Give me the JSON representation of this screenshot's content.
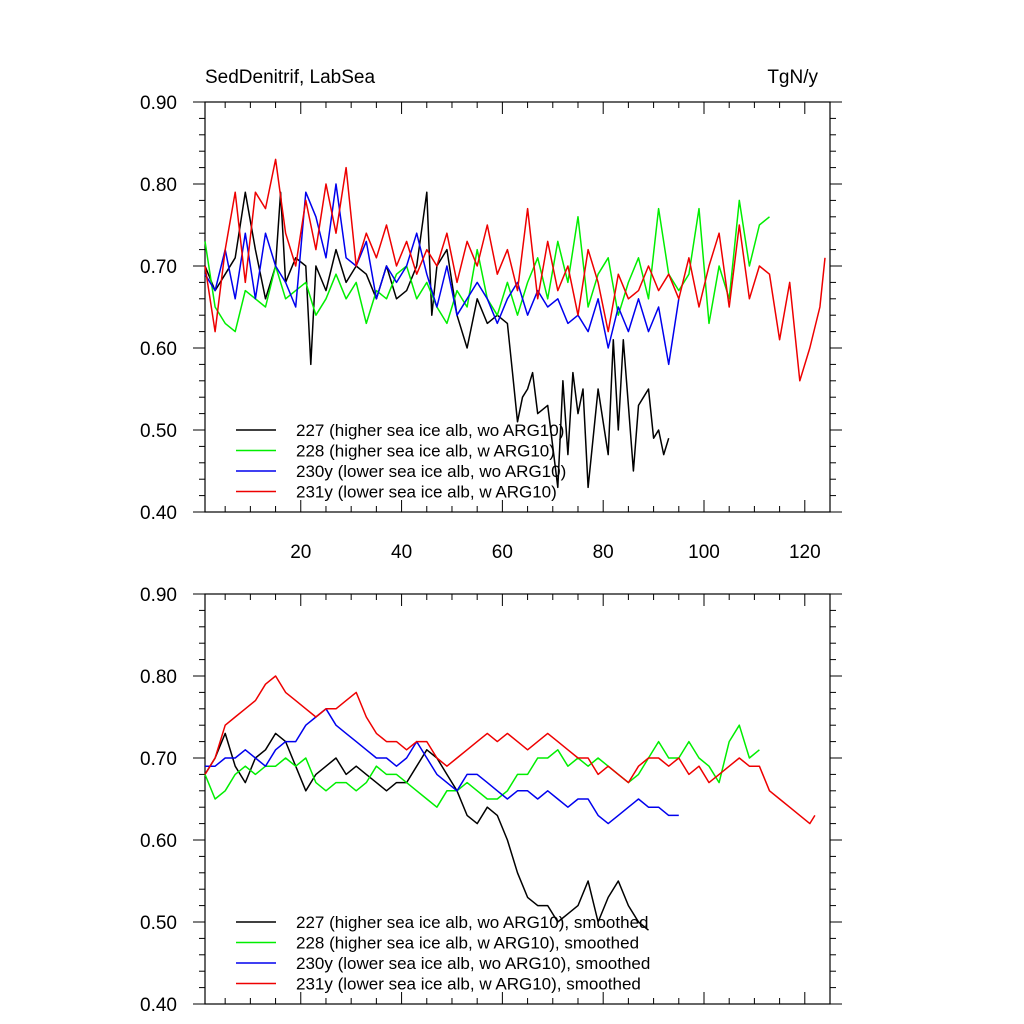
{
  "chart_data": [
    {
      "type": "line",
      "title": "SedDenitrif, LabSea",
      "units": "TgN/y",
      "xlim": [
        1,
        125
      ],
      "ylim": [
        0.4,
        0.9
      ],
      "xticks": [
        20,
        40,
        60,
        80,
        100,
        120
      ],
      "xtick_labels": [
        "20",
        "40",
        "60",
        "80",
        "100",
        "120"
      ],
      "yticks": [
        0.4,
        0.5,
        0.6,
        0.7,
        0.8,
        0.9
      ],
      "ytick_labels": [
        "0.40",
        "0.50",
        "0.60",
        "0.70",
        "0.80",
        "0.90"
      ],
      "legend_position": "bottom-left",
      "series": [
        {
          "name": "227 (higher sea ice alb, wo ARG10)",
          "color": "#000000",
          "x": [
            1,
            3,
            5,
            7,
            9,
            11,
            13,
            15,
            16,
            17,
            19,
            21,
            22,
            23,
            25,
            27,
            29,
            31,
            33,
            35,
            37,
            39,
            41,
            43,
            45,
            46,
            47,
            49,
            51,
            53,
            55,
            57,
            59,
            61,
            62,
            63,
            64,
            65,
            66,
            67,
            69,
            71,
            72,
            73,
            74,
            75,
            76,
            77,
            79,
            81,
            82,
            83,
            84,
            85,
            86,
            87,
            88,
            89,
            90,
            91,
            92,
            93
          ],
          "y": [
            0.7,
            0.67,
            0.69,
            0.71,
            0.79,
            0.72,
            0.66,
            0.7,
            0.79,
            0.68,
            0.71,
            0.7,
            0.58,
            0.7,
            0.67,
            0.72,
            0.68,
            0.7,
            0.69,
            0.66,
            0.7,
            0.66,
            0.67,
            0.7,
            0.79,
            0.64,
            0.7,
            0.72,
            0.64,
            0.6,
            0.66,
            0.63,
            0.64,
            0.63,
            0.57,
            0.51,
            0.54,
            0.55,
            0.57,
            0.52,
            0.53,
            0.43,
            0.56,
            0.47,
            0.57,
            0.52,
            0.55,
            0.43,
            0.55,
            0.47,
            0.61,
            0.5,
            0.61,
            0.53,
            0.45,
            0.53,
            0.54,
            0.55,
            0.49,
            0.5,
            0.47,
            0.49
          ]
        },
        {
          "name": "228 (higher sea ice alb, w ARG10)",
          "color": "#00ee00",
          "x": [
            1,
            3,
            5,
            7,
            9,
            11,
            13,
            15,
            17,
            19,
            21,
            23,
            25,
            27,
            29,
            31,
            33,
            35,
            37,
            39,
            41,
            43,
            45,
            47,
            49,
            51,
            53,
            55,
            57,
            59,
            61,
            63,
            65,
            67,
            69,
            71,
            73,
            75,
            77,
            79,
            81,
            83,
            85,
            87,
            89,
            91,
            93,
            95,
            97,
            99,
            101,
            103,
            105,
            107,
            109,
            111,
            113
          ],
          "y": [
            0.73,
            0.65,
            0.63,
            0.62,
            0.67,
            0.66,
            0.65,
            0.7,
            0.66,
            0.67,
            0.68,
            0.64,
            0.66,
            0.69,
            0.66,
            0.68,
            0.63,
            0.67,
            0.66,
            0.69,
            0.7,
            0.66,
            0.68,
            0.65,
            0.63,
            0.67,
            0.65,
            0.72,
            0.66,
            0.64,
            0.68,
            0.64,
            0.68,
            0.71,
            0.66,
            0.73,
            0.68,
            0.76,
            0.65,
            0.69,
            0.71,
            0.64,
            0.68,
            0.71,
            0.66,
            0.77,
            0.69,
            0.67,
            0.69,
            0.77,
            0.63,
            0.7,
            0.66,
            0.78,
            0.7,
            0.75,
            0.76
          ]
        },
        {
          "name": "230y (lower sea ice alb, wo ARG10)",
          "color": "#0000ee",
          "x": [
            1,
            3,
            5,
            7,
            9,
            11,
            13,
            15,
            17,
            19,
            21,
            23,
            25,
            27,
            29,
            31,
            33,
            35,
            37,
            39,
            41,
            43,
            45,
            47,
            49,
            51,
            53,
            55,
            57,
            59,
            61,
            63,
            65,
            67,
            69,
            71,
            73,
            75,
            77,
            79,
            81,
            83,
            85,
            87,
            89,
            91,
            93,
            95
          ],
          "y": [
            0.69,
            0.67,
            0.72,
            0.66,
            0.74,
            0.66,
            0.74,
            0.7,
            0.68,
            0.65,
            0.79,
            0.76,
            0.71,
            0.8,
            0.71,
            0.7,
            0.73,
            0.66,
            0.7,
            0.68,
            0.7,
            0.74,
            0.69,
            0.65,
            0.7,
            0.64,
            0.66,
            0.68,
            0.66,
            0.63,
            0.66,
            0.68,
            0.64,
            0.67,
            0.65,
            0.66,
            0.63,
            0.64,
            0.62,
            0.66,
            0.6,
            0.65,
            0.62,
            0.66,
            0.62,
            0.65,
            0.58,
            0.66
          ]
        },
        {
          "name": "231y (lower sea ice alb, w ARG10)",
          "color": "#ee0000",
          "x": [
            1,
            3,
            5,
            7,
            9,
            11,
            13,
            15,
            17,
            19,
            21,
            23,
            25,
            27,
            29,
            31,
            33,
            35,
            37,
            39,
            41,
            43,
            45,
            47,
            49,
            51,
            53,
            55,
            57,
            59,
            61,
            63,
            65,
            67,
            69,
            71,
            73,
            75,
            77,
            79,
            81,
            83,
            85,
            87,
            89,
            91,
            93,
            95,
            97,
            99,
            101,
            103,
            105,
            107,
            109,
            111,
            113,
            115,
            117,
            119,
            121,
            123,
            124
          ],
          "y": [
            0.7,
            0.62,
            0.72,
            0.79,
            0.68,
            0.79,
            0.77,
            0.83,
            0.74,
            0.7,
            0.78,
            0.72,
            0.8,
            0.74,
            0.82,
            0.7,
            0.74,
            0.71,
            0.75,
            0.7,
            0.73,
            0.69,
            0.72,
            0.7,
            0.74,
            0.68,
            0.73,
            0.7,
            0.75,
            0.69,
            0.72,
            0.67,
            0.77,
            0.66,
            0.73,
            0.67,
            0.7,
            0.64,
            0.72,
            0.68,
            0.62,
            0.69,
            0.66,
            0.67,
            0.7,
            0.67,
            0.69,
            0.66,
            0.71,
            0.65,
            0.7,
            0.74,
            0.65,
            0.75,
            0.66,
            0.7,
            0.69,
            0.61,
            0.68,
            0.56,
            0.6,
            0.65,
            0.71
          ]
        }
      ]
    },
    {
      "type": "line",
      "xlim": [
        1,
        125
      ],
      "ylim": [
        0.4,
        0.9
      ],
      "xticks": [
        20,
        40,
        60,
        80,
        100,
        120
      ],
      "yticks": [
        0.4,
        0.5,
        0.6,
        0.7,
        0.8,
        0.9
      ],
      "ytick_labels": [
        "0.40",
        "0.50",
        "0.60",
        "0.70",
        "0.80",
        "0.90"
      ],
      "legend_position": "bottom-left",
      "series": [
        {
          "name": "227 (higher sea ice alb, wo ARG10), smoothed",
          "color": "#000000",
          "x": [
            1,
            3,
            5,
            7,
            9,
            11,
            13,
            15,
            17,
            19,
            21,
            23,
            25,
            27,
            29,
            31,
            33,
            35,
            37,
            39,
            41,
            43,
            45,
            47,
            49,
            51,
            53,
            55,
            57,
            59,
            61,
            63,
            65,
            67,
            69,
            71,
            73,
            75,
            77,
            79,
            81,
            83,
            85,
            87,
            89
          ],
          "y": [
            0.68,
            0.7,
            0.73,
            0.69,
            0.67,
            0.7,
            0.71,
            0.73,
            0.72,
            0.69,
            0.66,
            0.68,
            0.69,
            0.7,
            0.68,
            0.69,
            0.68,
            0.67,
            0.66,
            0.67,
            0.67,
            0.69,
            0.71,
            0.7,
            0.68,
            0.66,
            0.63,
            0.62,
            0.64,
            0.63,
            0.6,
            0.56,
            0.53,
            0.52,
            0.52,
            0.5,
            0.51,
            0.52,
            0.55,
            0.5,
            0.53,
            0.55,
            0.52,
            0.5,
            0.49
          ]
        },
        {
          "name": "228 (higher sea ice alb, w ARG10), smoothed",
          "color": "#00ee00",
          "x": [
            1,
            3,
            5,
            7,
            9,
            11,
            13,
            15,
            17,
            19,
            21,
            23,
            25,
            27,
            29,
            31,
            33,
            35,
            37,
            39,
            41,
            43,
            45,
            47,
            49,
            51,
            53,
            55,
            57,
            59,
            61,
            63,
            65,
            67,
            69,
            71,
            73,
            75,
            77,
            79,
            81,
            83,
            85,
            87,
            89,
            91,
            93,
            95,
            97,
            99,
            101,
            103,
            105,
            107,
            109,
            111
          ],
          "y": [
            0.68,
            0.65,
            0.66,
            0.68,
            0.69,
            0.68,
            0.69,
            0.69,
            0.7,
            0.69,
            0.7,
            0.67,
            0.66,
            0.67,
            0.67,
            0.66,
            0.67,
            0.69,
            0.68,
            0.68,
            0.67,
            0.66,
            0.65,
            0.64,
            0.66,
            0.66,
            0.67,
            0.66,
            0.65,
            0.65,
            0.66,
            0.68,
            0.68,
            0.7,
            0.7,
            0.71,
            0.69,
            0.7,
            0.69,
            0.7,
            0.69,
            0.68,
            0.67,
            0.68,
            0.7,
            0.72,
            0.7,
            0.7,
            0.72,
            0.7,
            0.69,
            0.67,
            0.72,
            0.74,
            0.7,
            0.71
          ]
        },
        {
          "name": "230y (lower sea ice alb, wo ARG10), smoothed",
          "color": "#0000ee",
          "x": [
            1,
            3,
            5,
            7,
            9,
            11,
            13,
            15,
            17,
            19,
            21,
            23,
            25,
            27,
            29,
            31,
            33,
            35,
            37,
            39,
            41,
            43,
            45,
            47,
            49,
            51,
            53,
            55,
            57,
            59,
            61,
            63,
            65,
            67,
            69,
            71,
            73,
            75,
            77,
            79,
            81,
            83,
            85,
            87,
            89,
            91,
            93,
            95
          ],
          "y": [
            0.69,
            0.69,
            0.7,
            0.7,
            0.71,
            0.7,
            0.69,
            0.71,
            0.72,
            0.72,
            0.74,
            0.75,
            0.76,
            0.74,
            0.73,
            0.72,
            0.71,
            0.7,
            0.7,
            0.69,
            0.7,
            0.72,
            0.7,
            0.68,
            0.67,
            0.66,
            0.68,
            0.68,
            0.67,
            0.66,
            0.65,
            0.66,
            0.66,
            0.65,
            0.66,
            0.65,
            0.64,
            0.65,
            0.65,
            0.63,
            0.62,
            0.63,
            0.64,
            0.65,
            0.64,
            0.64,
            0.63,
            0.63
          ]
        },
        {
          "name": "231y (lower sea ice alb, w ARG10), smoothed",
          "color": "#ee0000",
          "x": [
            1,
            3,
            5,
            7,
            9,
            11,
            13,
            15,
            17,
            19,
            21,
            23,
            25,
            27,
            29,
            31,
            33,
            35,
            37,
            39,
            41,
            43,
            45,
            47,
            49,
            51,
            53,
            55,
            57,
            59,
            61,
            63,
            65,
            67,
            69,
            71,
            73,
            75,
            77,
            79,
            81,
            83,
            85,
            87,
            89,
            91,
            93,
            95,
            97,
            99,
            101,
            103,
            105,
            107,
            109,
            111,
            113,
            115,
            117,
            119,
            121,
            122
          ],
          "y": [
            0.68,
            0.7,
            0.74,
            0.75,
            0.76,
            0.77,
            0.79,
            0.8,
            0.78,
            0.77,
            0.76,
            0.75,
            0.76,
            0.76,
            0.77,
            0.78,
            0.75,
            0.73,
            0.72,
            0.72,
            0.71,
            0.72,
            0.72,
            0.7,
            0.69,
            0.7,
            0.71,
            0.72,
            0.73,
            0.72,
            0.73,
            0.72,
            0.71,
            0.72,
            0.73,
            0.72,
            0.71,
            0.7,
            0.7,
            0.68,
            0.69,
            0.68,
            0.67,
            0.69,
            0.7,
            0.7,
            0.69,
            0.7,
            0.68,
            0.69,
            0.67,
            0.68,
            0.69,
            0.7,
            0.69,
            0.69,
            0.66,
            0.65,
            0.64,
            0.63,
            0.62,
            0.63
          ]
        }
      ]
    }
  ]
}
